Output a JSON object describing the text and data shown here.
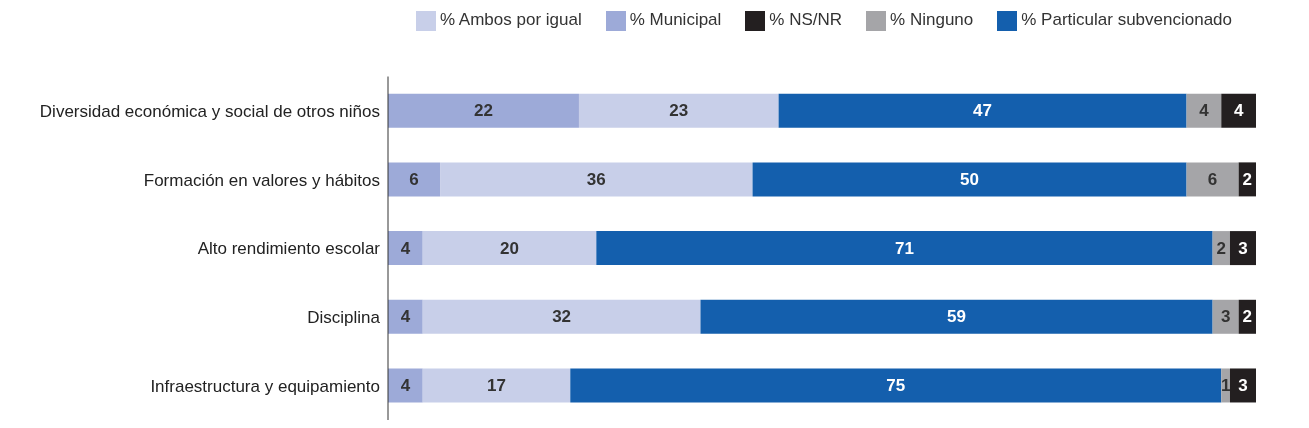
{
  "chart_data": {
    "type": "bar",
    "orientation": "horizontal",
    "stacked": true,
    "data_labels": true,
    "legend": "top right",
    "grid": false,
    "categories": [
      "Diversidad económica y social de otros niños",
      "Formación en valores y hábitos",
      "Alto rendimiento escolar",
      "Disciplina",
      "Infraestructura y equipamiento"
    ],
    "series": [
      {
        "name": "% Municipal",
        "color": "#9daad8",
        "values": [
          22,
          6,
          4,
          4,
          4
        ]
      },
      {
        "name": "% Ambos por igual",
        "color": "#c8cfe9",
        "values": [
          23,
          36,
          20,
          32,
          17
        ]
      },
      {
        "name": "% Particular subvencionado",
        "color": "#145fad",
        "values": [
          47,
          50,
          71,
          59,
          75
        ]
      },
      {
        "name": "% Ninguno",
        "color": "#a5a5a8",
        "values": [
          4,
          6,
          2,
          3,
          1
        ]
      },
      {
        "name": "% NS/NR",
        "color": "#231f20",
        "values": [
          4,
          2,
          3,
          2,
          3
        ]
      }
    ]
  }
}
